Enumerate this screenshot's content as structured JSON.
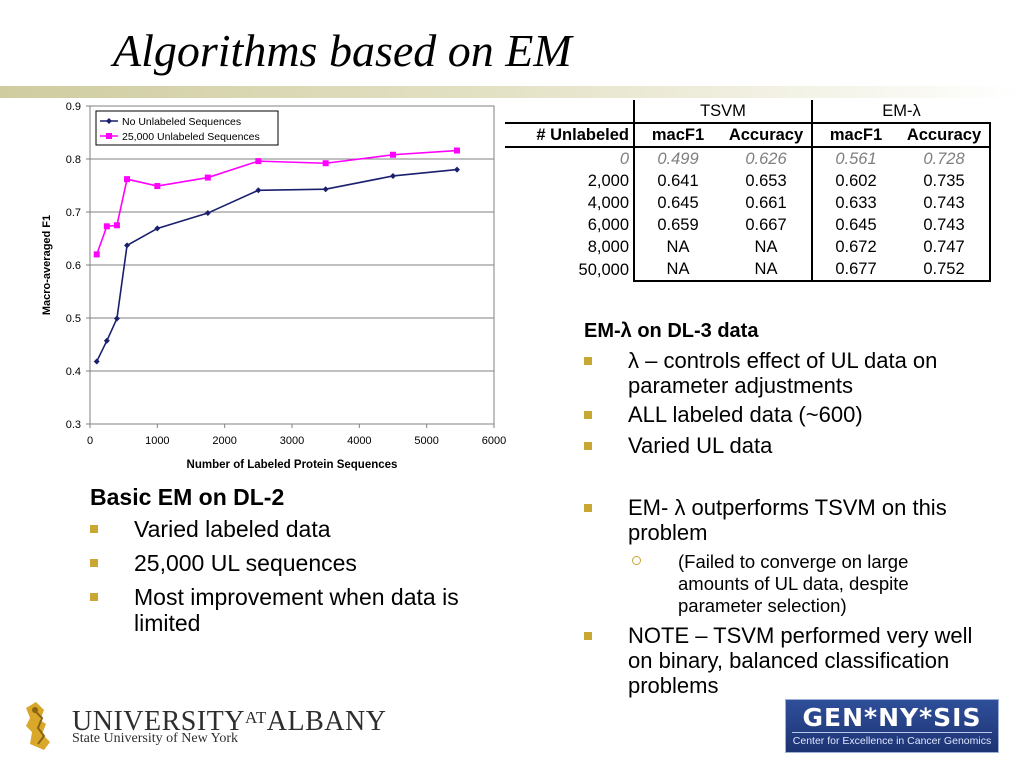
{
  "slide": {
    "title": "Algorithms based on EM",
    "university": {
      "name_part1": "UNIVERSITY",
      "name_at": "AT",
      "name_part2": "ALBANY",
      "subtitle": "State University of New York"
    },
    "partner_logo": {
      "main": "GEN*NY*SIS",
      "sub": "Center for Excellence in Cancer Genomics"
    }
  },
  "chart_data": {
    "type": "line",
    "xlabel": "Number of Labeled Protein Sequences",
    "ylabel": "Macro-averaged F1",
    "xlim": [
      0,
      6000
    ],
    "ylim": [
      0.3,
      0.9
    ],
    "x_ticks": [
      "0",
      "1000",
      "2000",
      "3000",
      "4000",
      "5000",
      "6000"
    ],
    "y_ticks": [
      "0.3",
      "0.4",
      "0.5",
      "0.6",
      "0.7",
      "0.8",
      "0.9"
    ],
    "legend_position": "top-left",
    "grid": "horizontal",
    "series": [
      {
        "name": "No Unlabeled Sequences",
        "color": "#1a1f6e",
        "marker": "diamond",
        "x": [
          100,
          250,
          400,
          550,
          1000,
          1750,
          2500,
          3500,
          4500,
          5450
        ],
        "y": [
          0.418,
          0.457,
          0.499,
          0.637,
          0.669,
          0.698,
          0.741,
          0.743,
          0.768,
          0.78
        ]
      },
      {
        "name": "25,000 Unlabeled Sequences",
        "color": "#ff00ff",
        "marker": "square",
        "x": [
          100,
          250,
          400,
          550,
          1000,
          1750,
          2500,
          3500,
          4500,
          5450
        ],
        "y": [
          0.62,
          0.673,
          0.675,
          0.762,
          0.749,
          0.765,
          0.796,
          0.792,
          0.808,
          0.816
        ]
      }
    ]
  },
  "table": {
    "group_headers": [
      "TSVM",
      "EM-λ"
    ],
    "columns": [
      "# Unlabeled",
      "macF1",
      "Accuracy",
      "macF1",
      "Accuracy"
    ],
    "rows": [
      [
        "0",
        "0.499",
        "0.626",
        "0.561",
        "0.728"
      ],
      [
        "2,000",
        "0.641",
        "0.653",
        "0.602",
        "0.735"
      ],
      [
        "4,000",
        "0.645",
        "0.661",
        "0.633",
        "0.743"
      ],
      [
        "6,000",
        "0.659",
        "0.667",
        "0.645",
        "0.743"
      ],
      [
        "8,000",
        "NA",
        "NA",
        "0.672",
        "0.747"
      ],
      [
        "50,000",
        "NA",
        "NA",
        "0.677",
        "0.752"
      ]
    ]
  },
  "left_text": {
    "heading": "Basic EM on DL-2",
    "items": [
      "Varied labeled data",
      "25,000 UL sequences",
      "Most improvement when data is limited"
    ]
  },
  "right_text": {
    "heading": "EM-λ on DL-3 data",
    "items": [
      "λ – controls effect of UL data on parameter adjustments",
      "ALL labeled data (~600)",
      "Varied UL data"
    ],
    "items2": [
      "EM- λ outperforms TSVM on this problem",
      "(Failed to converge on large amounts of UL data, despite parameter selection)",
      "NOTE – TSVM performed very well on binary, balanced classification problems"
    ]
  }
}
